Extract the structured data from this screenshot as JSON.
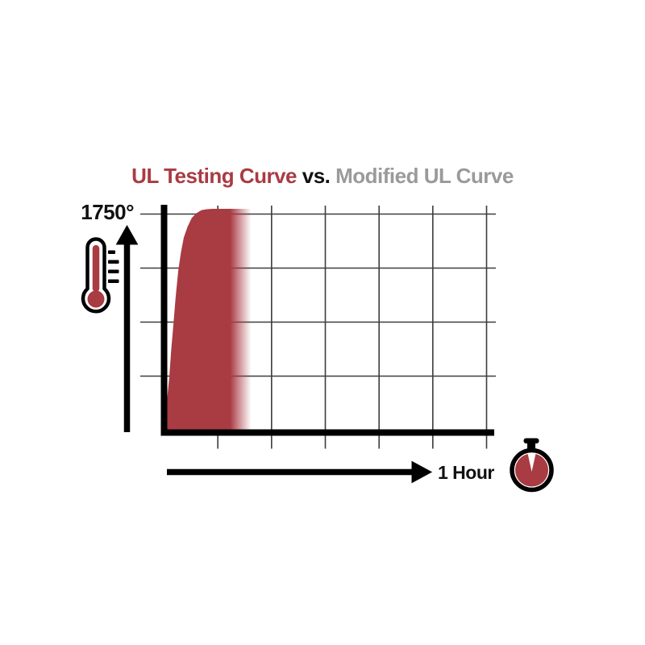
{
  "title": {
    "red_part": "UL Testing Curve",
    "vs_part": " vs. ",
    "gray_part": "Modified UL Curve"
  },
  "colors": {
    "brand_red": "#A93B43",
    "title_gray": "#9A9A9A",
    "ink": "#111111",
    "grid": "#3d3d3d"
  },
  "y_axis": {
    "max_label": "1750°"
  },
  "x_axis": {
    "end_label": "1 Hour"
  },
  "icons": [
    {
      "name": "thermometer-icon",
      "meaning": "temperature axis"
    },
    {
      "name": "stopwatch-icon",
      "meaning": "time axis"
    },
    {
      "name": "up-arrow-icon",
      "meaning": "increasing temperature"
    },
    {
      "name": "right-arrow-icon",
      "meaning": "elapsed time"
    }
  ],
  "chart_data": {
    "type": "area",
    "title": "UL Testing Curve vs. Modified UL Curve",
    "xlabel": "1 Hour",
    "ylabel": "1750°",
    "x_range_hours": [
      0,
      1
    ],
    "y_range_deg": [
      0,
      1750
    ],
    "x_gridlines_hours": [
      0.1667,
      0.3333,
      0.5,
      0.6667,
      0.8333,
      1.0
    ],
    "y_gridlines_deg": [
      437.5,
      875,
      1312.5,
      1750
    ],
    "grid": true,
    "legend_position": "none",
    "series": [
      {
        "name": "UL Testing Curve",
        "x_hours": [
          0,
          0.008,
          0.016,
          0.022,
          0.029,
          0.036,
          0.044,
          0.052,
          0.061,
          0.073,
          0.086,
          0.1,
          0.116,
          0.133,
          0.15,
          0.27
        ],
        "y_deg": [
          0,
          210,
          414,
          630,
          838,
          1055,
          1261,
          1400,
          1522,
          1610,
          1678,
          1715,
          1740,
          1747,
          1750,
          1750
        ],
        "fill": "#A93B43",
        "fill_fade_start_hours": 0.205,
        "fill_fade_end_hours": 0.27
      }
    ]
  }
}
